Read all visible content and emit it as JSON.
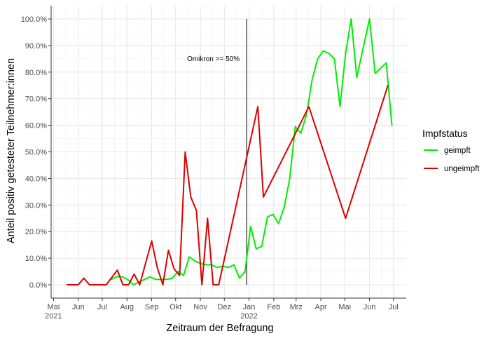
{
  "chart_data": {
    "type": "line",
    "title": "",
    "xlabel": "Zeitraum der Befragung",
    "ylabel": "Anteil positiv getesteter Teilnehmer:innen",
    "ylim": [
      0,
      1.0
    ],
    "yticks": [
      0,
      0.1,
      0.2,
      0.3,
      0.4,
      0.5,
      0.6,
      0.7,
      0.8,
      0.9,
      1.0
    ],
    "ytick_labels": [
      "0.0%",
      "10.0%",
      "20.0%",
      "30.0%",
      "40.0%",
      "50.0%",
      "60.0%",
      "70.0%",
      "80.0%",
      "90.0%",
      "100.0%"
    ],
    "xlim": [
      "2021-04-28",
      "2022-07-17"
    ],
    "xticks": [
      "2021-05-01",
      "2021-06-01",
      "2021-07-01",
      "2021-08-01",
      "2021-09-01",
      "2021-10-01",
      "2021-11-01",
      "2021-12-01",
      "2022-01-01",
      "2022-02-01",
      "2022-03-01",
      "2022-04-01",
      "2022-05-01",
      "2022-06-01",
      "2022-07-01"
    ],
    "xtick_labels": [
      "Mai",
      "Jun",
      "Jul",
      "Aug",
      "Sep",
      "Okt",
      "Nov",
      "Dez",
      "Jan",
      "Feb",
      "Mrz",
      "Apr",
      "Mai",
      "Jun",
      "Jul"
    ],
    "xtick_year_labels": [
      {
        "x": "2021-05-01",
        "label": "2021"
      },
      {
        "x": "2022-01-01",
        "label": "2022"
      }
    ],
    "grid": true,
    "legend": {
      "title": "Impfstatus",
      "position": "right"
    },
    "vline": {
      "x": "2021-12-29",
      "label": "Omikron >= 50%"
    },
    "series": [
      {
        "name": "geimpft",
        "color": "#00ee00",
        "points": [
          [
            "2021-07-12",
            0.02
          ],
          [
            "2021-07-19",
            0.03
          ],
          [
            "2021-07-26",
            0.03
          ],
          [
            "2021-08-02",
            0.02
          ],
          [
            "2021-08-09",
            0.0
          ],
          [
            "2021-08-16",
            0.01
          ],
          [
            "2021-08-23",
            0.02
          ],
          [
            "2021-08-30",
            0.03
          ],
          [
            "2021-09-06",
            0.02
          ],
          [
            "2021-09-13",
            0.02
          ],
          [
            "2021-09-20",
            0.02
          ],
          [
            "2021-09-27",
            0.025
          ],
          [
            "2021-10-04",
            0.05
          ],
          [
            "2021-10-11",
            0.035
          ],
          [
            "2021-10-18",
            0.105
          ],
          [
            "2021-10-25",
            0.09
          ],
          [
            "2021-11-01",
            0.08
          ],
          [
            "2021-11-08",
            0.075
          ],
          [
            "2021-11-15",
            0.075
          ],
          [
            "2021-11-22",
            0.065
          ],
          [
            "2021-11-29",
            0.07
          ],
          [
            "2021-12-06",
            0.065
          ],
          [
            "2021-12-13",
            0.075
          ],
          [
            "2021-12-20",
            0.025
          ],
          [
            "2021-12-27",
            0.05
          ],
          [
            "2022-01-03",
            0.22
          ],
          [
            "2022-01-10",
            0.135
          ],
          [
            "2022-01-17",
            0.145
          ],
          [
            "2022-01-24",
            0.255
          ],
          [
            "2022-01-31",
            0.265
          ],
          [
            "2022-02-07",
            0.23
          ],
          [
            "2022-02-14",
            0.29
          ],
          [
            "2022-02-21",
            0.4
          ],
          [
            "2022-02-28",
            0.595
          ],
          [
            "2022-03-07",
            0.57
          ],
          [
            "2022-03-14",
            0.64
          ],
          [
            "2022-03-21",
            0.77
          ],
          [
            "2022-03-28",
            0.85
          ],
          [
            "2022-04-04",
            0.88
          ],
          [
            "2022-04-11",
            0.87
          ],
          [
            "2022-04-18",
            0.85
          ],
          [
            "2022-04-25",
            0.67
          ],
          [
            "2022-05-02",
            0.87
          ],
          [
            "2022-05-09",
            1.0
          ],
          [
            "2022-05-16",
            0.78
          ],
          [
            "2022-06-01",
            1.0
          ],
          [
            "2022-06-08",
            0.795
          ],
          [
            "2022-06-22",
            0.835
          ],
          [
            "2022-06-29",
            0.6
          ]
        ]
      },
      {
        "name": "ungeimpft",
        "color": "#dd0000",
        "points": [
          [
            "2021-05-18",
            0.0
          ],
          [
            "2021-06-01",
            0.0
          ],
          [
            "2021-06-08",
            0.025
          ],
          [
            "2021-06-15",
            0.0
          ],
          [
            "2021-07-06",
            0.0
          ],
          [
            "2021-07-20",
            0.055
          ],
          [
            "2021-07-27",
            0.0
          ],
          [
            "2021-08-03",
            0.0
          ],
          [
            "2021-08-10",
            0.04
          ],
          [
            "2021-08-17",
            0.0
          ],
          [
            "2021-09-01",
            0.165
          ],
          [
            "2021-09-08",
            0.065
          ],
          [
            "2021-09-15",
            0.0
          ],
          [
            "2021-09-22",
            0.13
          ],
          [
            "2021-09-29",
            0.06
          ],
          [
            "2021-10-06",
            0.035
          ],
          [
            "2021-10-13",
            0.5
          ],
          [
            "2021-10-20",
            0.33
          ],
          [
            "2021-10-27",
            0.28
          ],
          [
            "2021-11-03",
            0.0
          ],
          [
            "2021-11-10",
            0.25
          ],
          [
            "2021-11-17",
            0.0
          ],
          [
            "2021-11-24",
            0.0
          ],
          [
            "2022-01-12",
            0.67
          ],
          [
            "2022-01-19",
            0.33
          ],
          [
            "2022-03-17",
            0.67
          ],
          [
            "2022-05-02",
            0.25
          ],
          [
            "2022-06-24",
            0.75
          ]
        ]
      }
    ]
  }
}
